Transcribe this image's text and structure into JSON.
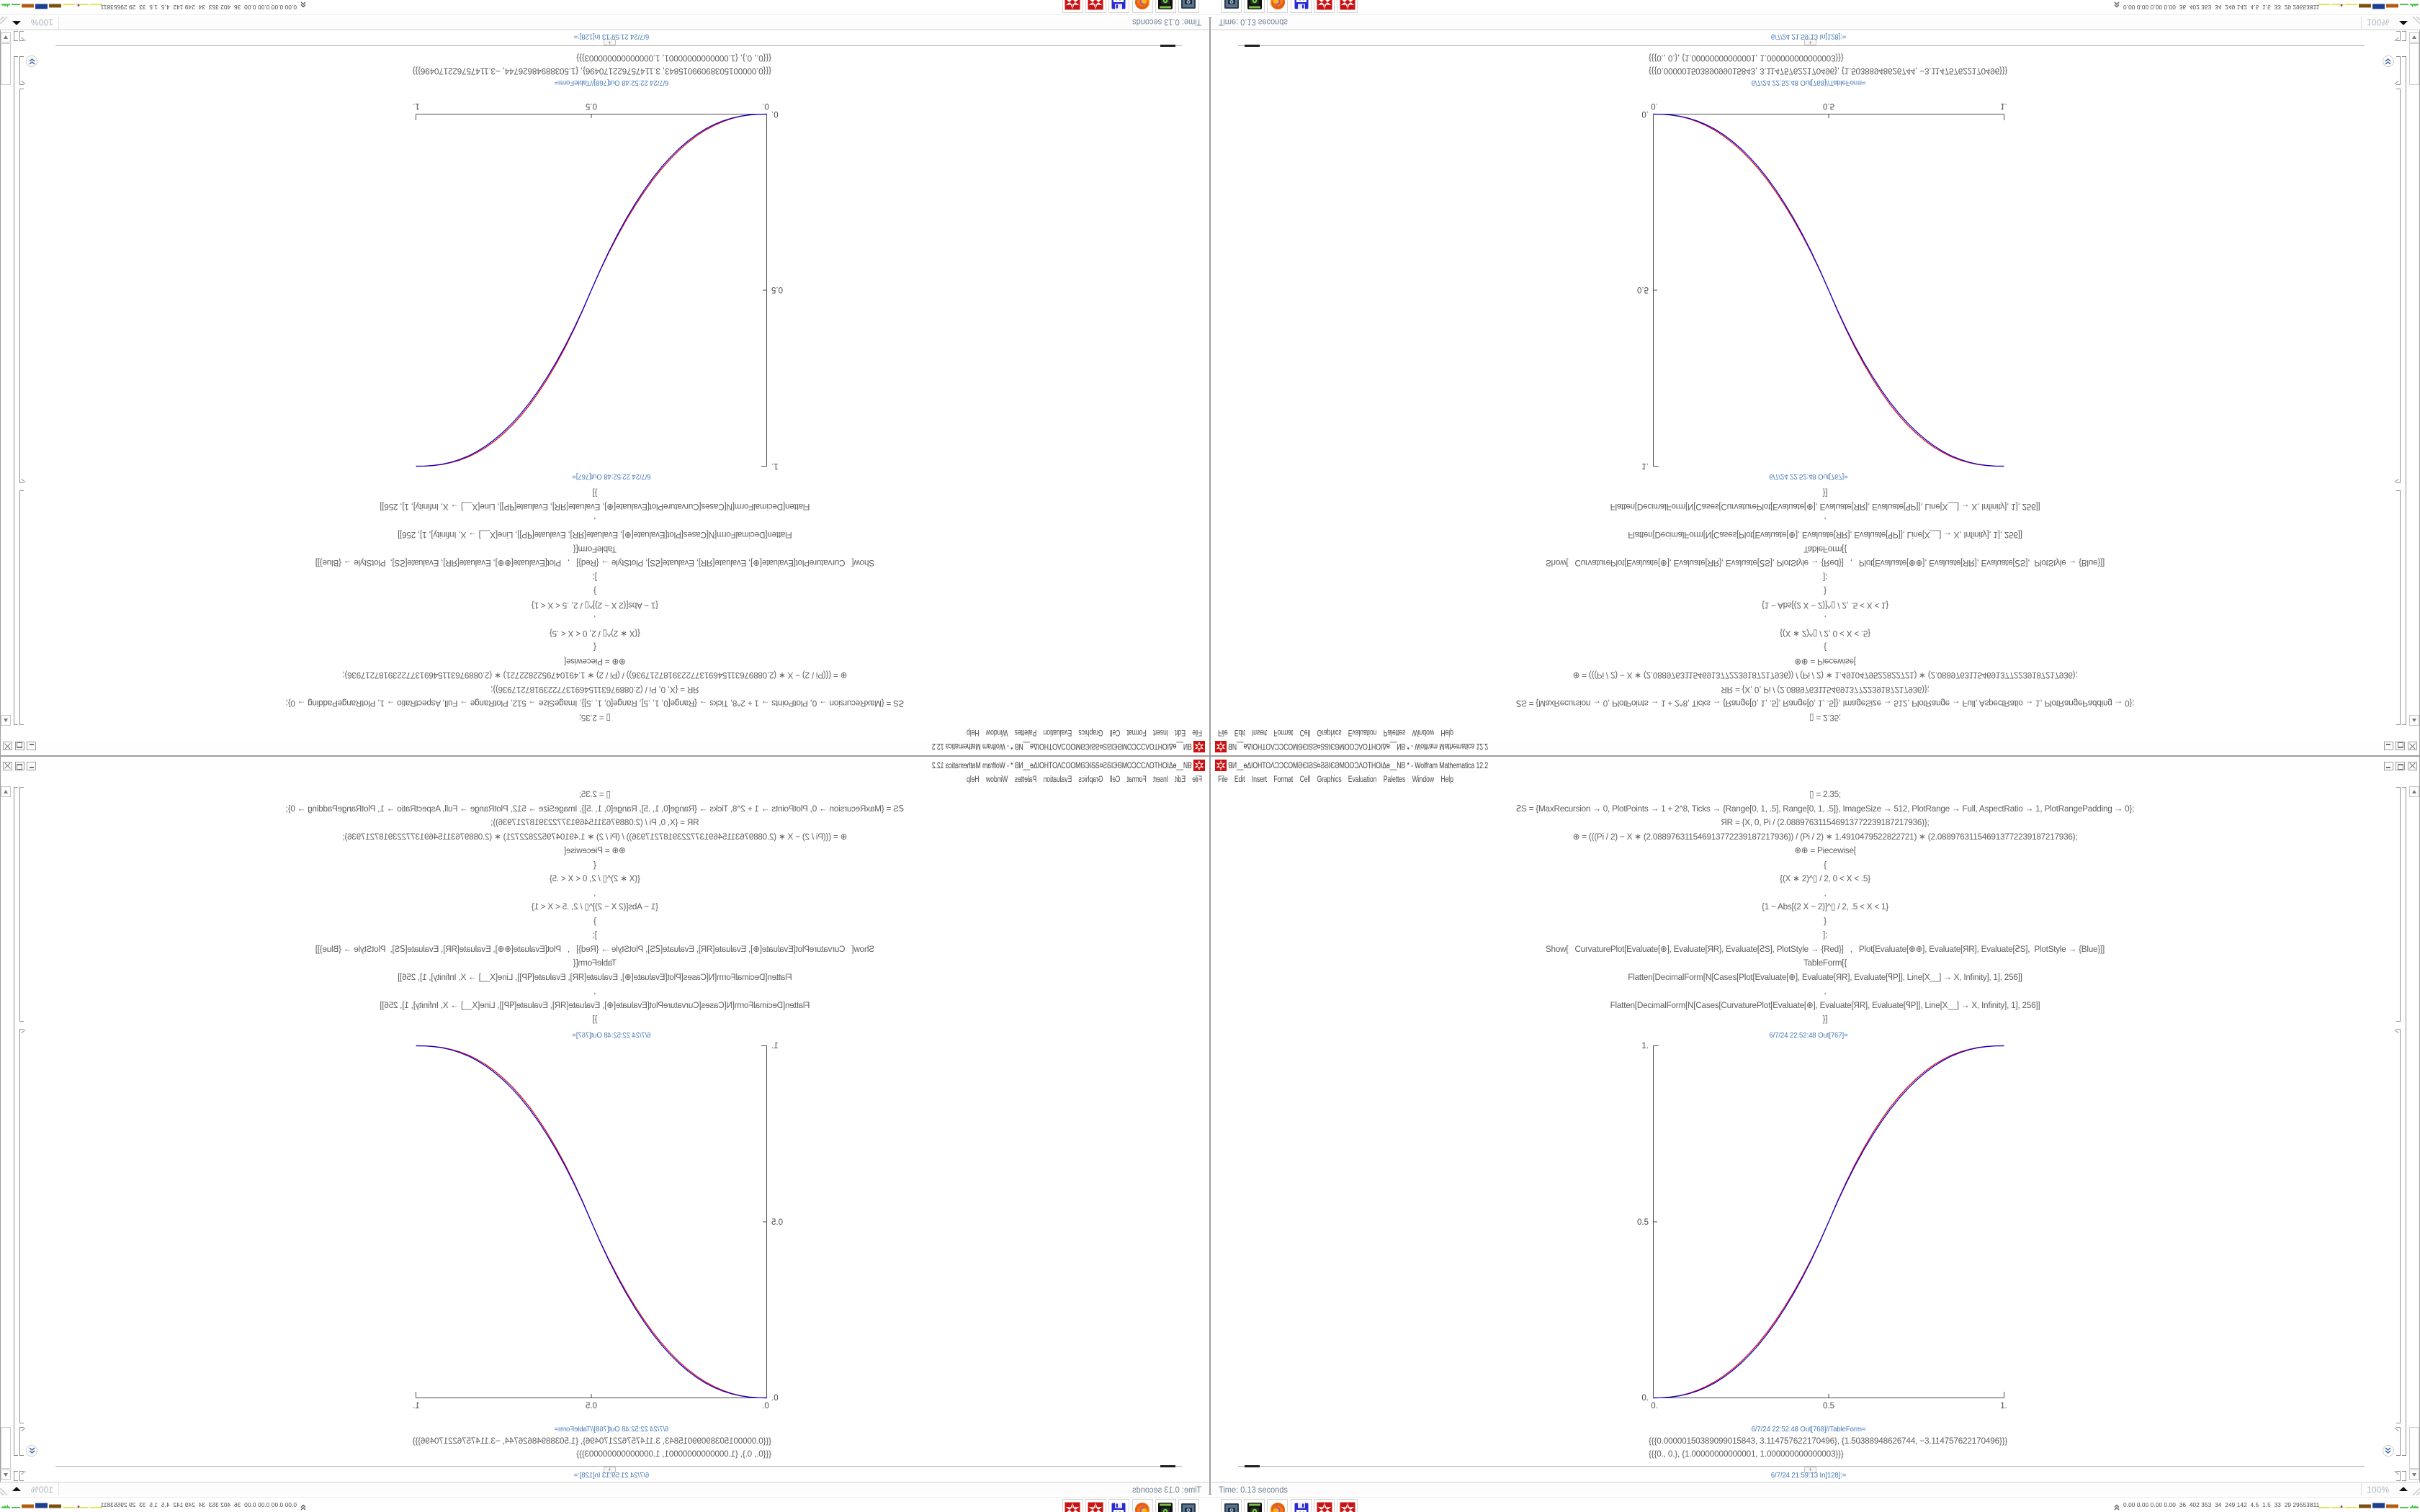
{
  "window": {
    "title": "ꓭИ__ɵΔIOHTOΛϽϽCOMӘЄIϨЅ¤ϨϨIЄӘMOOϽΛOTHOIΔɵ__NB * - Wolfram Mathematica 12.2",
    "app_icon": "mathematica-spikey",
    "menu": [
      "File",
      "Edit",
      "Insert",
      "Format",
      "Cell",
      "Graphics",
      "Evaluation",
      "Palettes",
      "Window",
      "Help"
    ],
    "controls": {
      "minimize": "minimize",
      "maximize": "maximize",
      "close": "close"
    }
  },
  "notebook": {
    "lines": [
      "▯ = 2.35;",
      "ꙄS = {MaxRecursion → 0, PlotPoints → 1 + 2^8, Ticks → {Range[0, 1, .5], Range[0, 1, .5]}, ImageSize → 512, PlotRange → Full, AspectRatio → 1, PlotRangePadding → 0};",
      "ЯR = {X, 0, Pi / (2.088976311546913772239187217936)};",
      "⊕ = (((Pi / 2) − X ∗ (2.088976311546913772239187217936)) / (Pi / 2) ∗ 1.4910479522822721) ∗ (2.088976311546913772239187217936);",
      "⊕⊕ = Piecewise[",
      "{",
      "{(X ∗ 2)^▯ / 2, 0 < X < .5}",
      ",",
      "{1 − Abs[(2 X − 2)]^▯ / 2, .5 < X < 1}",
      "}",
      "];",
      "Show[   CurvaturePlot[Evaluate[⊕], Evaluate[ЯR], Evaluate[ꙄS], PlotStyle → {Red}]   ,   Plot[Evaluate[⊕⊕], Evaluate[ЯR], Evaluate[ꙄS],  PlotStyle → {Blue}]]",
      "TableForm[{",
      "Flatten[DecimalForm[N[Cases[Plot[Evaluate[⊕], Evaluate[ЯR], Evaluate[ꟼP]], Line[X__] → X, Infinity], 1], 256]]",
      ",",
      "Flatten[DecimalForm[N[Cases[CurvaturePlot[Evaluate[⊕], Evaluate[ЯR], Evaluate[ꟼP]], Line[X__] → X, Infinity], 1], 256]]",
      "}]"
    ],
    "out1_label": "6/7/24 22:52:48 Out[767]=",
    "out2_label": "6/7/24 22:52:48 Out[768]//TableForm=",
    "in_label": "6/7/24 21:59:13 In[128]:=",
    "insert_plus": "+",
    "table_rows": [
      "{{{0.00000150389099015843, 3.114757622170496}, {1.50388948626744, −3.114757622170496}}}",
      "{{{0., 0.}, {1.00000000000001, 1.000000000000003}}}"
    ]
  },
  "chart_data": {
    "type": "line",
    "title": "",
    "xlabel": "",
    "ylabel": "",
    "xlim": [
      0,
      1
    ],
    "ylim": [
      0,
      1
    ],
    "x_tick_labels": [
      "0.",
      "0.5",
      "1."
    ],
    "y_tick_labels": [
      "0.",
      "0.5",
      "1."
    ],
    "grid": false,
    "legend": "none",
    "axis_color": "#4c4c4c",
    "x": [
      0.0,
      0.025,
      0.05,
      0.075,
      0.1,
      0.125,
      0.15,
      0.175,
      0.2,
      0.225,
      0.25,
      0.275,
      0.3,
      0.325,
      0.35,
      0.375,
      0.4,
      0.425,
      0.45,
      0.475,
      0.5,
      0.525,
      0.55,
      0.575,
      0.6,
      0.625,
      0.65,
      0.675,
      0.7,
      0.725,
      0.75,
      0.775,
      0.8,
      0.825,
      0.85,
      0.875,
      0.9,
      0.925,
      0.95,
      0.975,
      1.0
    ],
    "series": [
      {
        "name": "CurvaturePlot (Red)",
        "color": "#dd0000",
        "values": [
          0.0,
          0.0005,
          0.0026,
          0.0066,
          0.0127,
          0.0212,
          0.0321,
          0.0457,
          0.0619,
          0.081,
          0.1029,
          0.1279,
          0.156,
          0.1872,
          0.2217,
          0.2595,
          0.3006,
          0.3452,
          0.3932,
          0.4448,
          0.5,
          0.5586,
          0.6129,
          0.6631,
          0.7093,
          0.7515,
          0.7898,
          0.8245,
          0.8555,
          0.883,
          0.9072,
          0.9282,
          0.9461,
          0.961,
          0.9732,
          0.9828,
          0.99,
          0.995,
          0.9981,
          0.9997,
          1.0
        ]
      },
      {
        "name": "Plot (Blue)",
        "color": "#0000dd",
        "values": [
          0.0,
          0.0004,
          0.0022,
          0.0058,
          0.0114,
          0.0192,
          0.0295,
          0.0424,
          0.0581,
          0.0766,
          0.0981,
          0.1227,
          0.1505,
          0.1817,
          0.2162,
          0.2543,
          0.296,
          0.3413,
          0.3903,
          0.4432,
          0.5,
          0.5568,
          0.6097,
          0.6587,
          0.704,
          0.7457,
          0.7838,
          0.8183,
          0.8495,
          0.8773,
          0.9019,
          0.9234,
          0.9419,
          0.9576,
          0.9705,
          0.9808,
          0.9886,
          0.9942,
          0.9978,
          0.9996,
          1.0
        ]
      }
    ]
  },
  "status_bar": {
    "message": "Time: 0.13 seconds",
    "zoom": "100%"
  },
  "taskbar": {
    "icons": [
      "screenshot-tool",
      "disk-utility",
      "firefox",
      "floppy-64",
      "mathematica",
      "mathematica"
    ],
    "tray_stats": "0.00 0.00 0.00 0.00  36  402 353  34  249 142  4.5  1.5  33  29 29553811"
  },
  "colors": {
    "curve_red": "#dd0000",
    "curve_blue": "#0000dd",
    "cell_label_blue": "#4377b5",
    "code_gray": "#5e5e5e",
    "mathematica_red": "#cc1111"
  }
}
